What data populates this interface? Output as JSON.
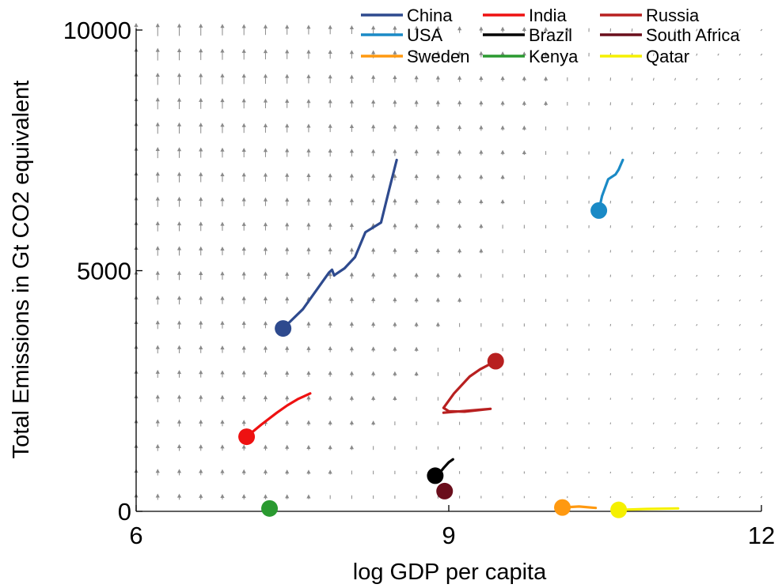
{
  "chart_data": {
    "type": "line",
    "title": "",
    "xlabel": "log GDP per capita",
    "ylabel": "Total Emissions in Gt CO2 equivalent",
    "xlim": [
      6,
      12
    ],
    "ylim": [
      0,
      10000
    ],
    "xticks": [
      "6",
      "9",
      "12"
    ],
    "yticks": [
      "0",
      "5000",
      "10000"
    ],
    "xtick_values": [
      6,
      9,
      12
    ],
    "ytick_values": [
      0,
      5000,
      10000
    ],
    "legend_position": "top-right",
    "background": "vector field of small grey arrows pointing upward, longest at left and top, fading toward the right",
    "series": [
      {
        "name": "China",
        "color": "#2e4a8e",
        "x": [
          7.41,
          7.6,
          7.85,
          7.88,
          7.9,
          7.91,
          8.0,
          8.1,
          8.2,
          8.35,
          8.43,
          8.5
        ],
        "y": [
          3800,
          4200,
          4960,
          5020,
          4900,
          4920,
          5050,
          5280,
          5800,
          6000,
          6700,
          7300
        ]
      },
      {
        "name": "USA",
        "color": "#1a8ac6",
        "x": [
          10.44,
          10.47,
          10.53,
          10.6,
          10.63,
          10.67
        ],
        "y": [
          6250,
          6550,
          6900,
          7000,
          7100,
          7300
        ]
      },
      {
        "name": "Sweden",
        "color": "#ff9910",
        "x": [
          10.09,
          10.25,
          10.41
        ],
        "y": [
          80,
          100,
          70
        ]
      },
      {
        "name": "India",
        "color": "#ee1111",
        "x": [
          7.06,
          7.2,
          7.35,
          7.45,
          7.55,
          7.67
        ],
        "y": [
          1550,
          1800,
          2050,
          2200,
          2330,
          2450
        ]
      },
      {
        "name": "Brazil",
        "color": "#000000",
        "x": [
          8.87,
          8.92,
          8.95,
          9.0,
          9.04
        ],
        "y": [
          740,
          820,
          900,
          1020,
          1080
        ]
      },
      {
        "name": "Kenya",
        "color": "#2a9a30",
        "x": [
          7.28,
          7.3
        ],
        "y": [
          60,
          60
        ]
      },
      {
        "name": "Russia",
        "color": "#b82020",
        "x": [
          9.45,
          9.3,
          9.2,
          9.05,
          8.95,
          9.0,
          9.15,
          9.4,
          8.95
        ],
        "y": [
          3120,
          2950,
          2800,
          2450,
          2150,
          2080,
          2070,
          2130,
          2050
        ]
      },
      {
        "name": "South Africa",
        "color": "#6a0e1c",
        "x": [
          8.96,
          8.98,
          9.02
        ],
        "y": [
          420,
          450,
          460
        ]
      },
      {
        "name": "Qatar",
        "color": "#f5f000",
        "x": [
          10.63,
          10.9,
          11.2
        ],
        "y": [
          30,
          50,
          60
        ]
      }
    ]
  }
}
